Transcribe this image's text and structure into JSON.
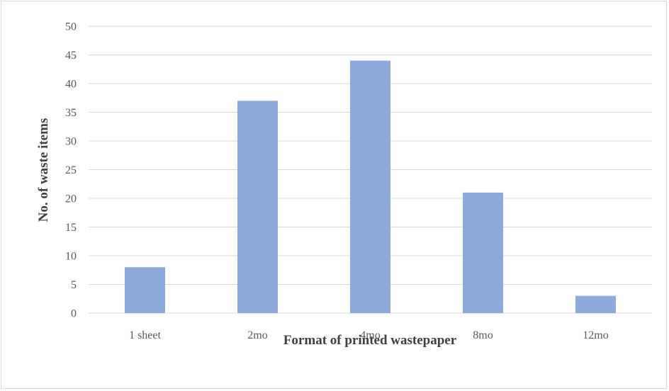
{
  "chart_data": {
    "type": "bar",
    "categories": [
      "1 sheet",
      "2mo",
      "4mo",
      "8mo",
      "12mo"
    ],
    "values": [
      8,
      37,
      44,
      21,
      3
    ],
    "xlabel": "Format of printed wastepaper",
    "ylabel": "No. of waste items",
    "ylim": [
      0,
      50
    ],
    "yticks": [
      "0",
      "5",
      "10",
      "15",
      "20",
      "25",
      "30",
      "35",
      "40",
      "45",
      "50"
    ],
    "grid": true,
    "legend": "none",
    "bar_color": "#8eaadb",
    "grid_color": "#d9d9d9"
  }
}
